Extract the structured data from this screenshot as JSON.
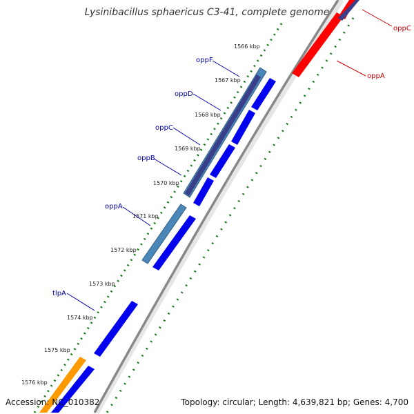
{
  "title": "Lysinibacillus sphaericus C3-41, complete genome",
  "footer": {
    "accession": "Accession: NC_010382",
    "topology": "Topology: circular; Length: 4,639,821 bp; Genes: 4,700"
  },
  "ticks": [
    "1566 kbp",
    "1567 kbp",
    "1568 kbp",
    "1569 kbp",
    "1570 kbp",
    "1571 kbp",
    "1572 kbp",
    "1573 kbp",
    "1574 kbp",
    "1575 kbp",
    "1576 kbp"
  ],
  "gene_labels": {
    "oppF_left": "oppF",
    "oppD_left": "oppD",
    "oppC_left": "oppC",
    "oppB_left": "oppB",
    "oppA_left": "oppA",
    "tlpA": "tlpA",
    "oppC_right": "oppC",
    "oppA_right": "oppA"
  },
  "colors": {
    "cds_blue": "#0000ee",
    "cds_light": "#4a86b8",
    "cds_dark": "#3a3f8a",
    "cds_red": "#ff0000",
    "cds_orange": "#ff9900",
    "label_blue": "#0000aa",
    "label_red": "#cc0000",
    "backbone": "#888888",
    "gc_dots": "#117711"
  }
}
